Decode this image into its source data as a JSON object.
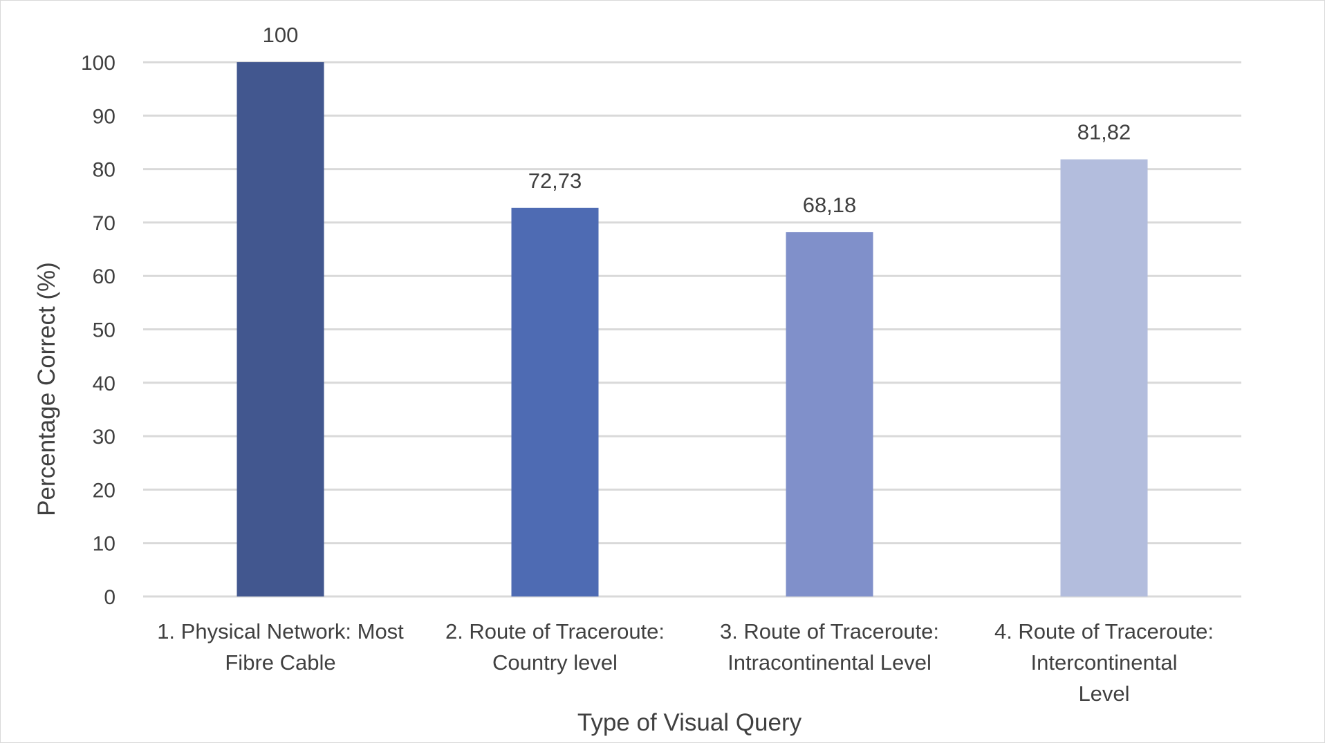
{
  "chart_data": {
    "type": "bar",
    "title": "",
    "xlabel": "Type of Visual Query",
    "ylabel": "Percentage Correct  (%)",
    "ylim": [
      0,
      100
    ],
    "yticks": [
      0,
      10,
      20,
      30,
      40,
      50,
      60,
      70,
      80,
      90,
      100
    ],
    "grid": true,
    "legend": "none",
    "categories": [
      [
        "1. Physical Network: Most",
        "Fibre Cable"
      ],
      [
        "2. Route of Traceroute:",
        "Country level"
      ],
      [
        "3. Route of Traceroute:",
        "Intracontinental Level"
      ],
      [
        "4. Route of Traceroute:",
        "Intercontinental",
        "Level"
      ]
    ],
    "values": [
      100,
      72.73,
      68.18,
      81.82
    ],
    "data_labels": [
      "100",
      "72,73",
      "68,18",
      "81,82"
    ],
    "colors": [
      "#42578f",
      "#4e6bb3",
      "#8090ca",
      "#b3bddd"
    ],
    "gridline_color": "#d9d9d9",
    "text_color": "#404040"
  }
}
